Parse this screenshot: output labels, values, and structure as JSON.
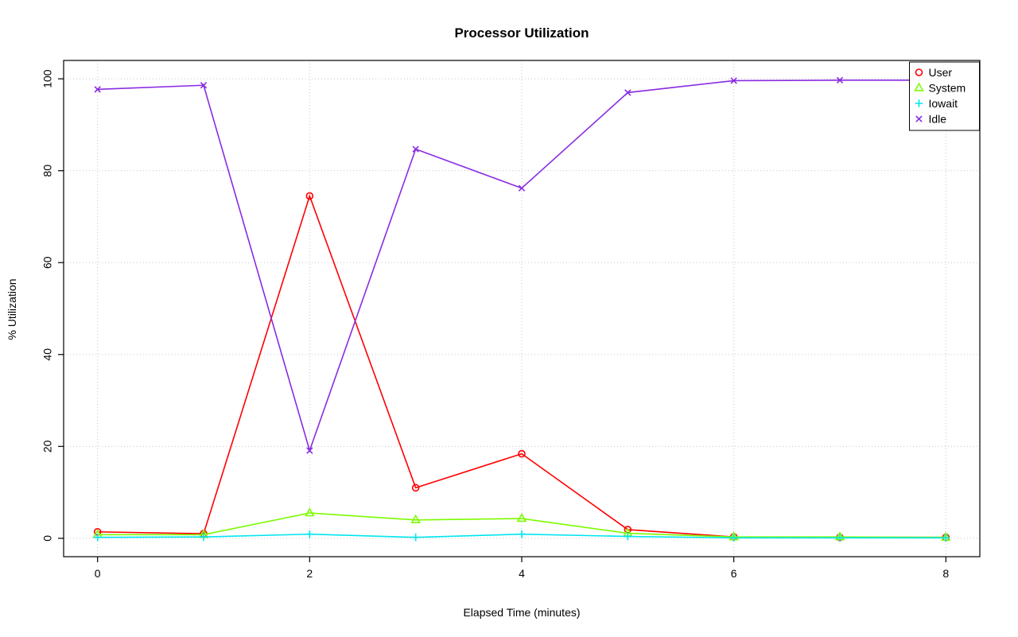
{
  "chart_data": {
    "type": "line",
    "title": "Processor Utilization",
    "xlabel": "Elapsed Time (minutes)",
    "ylabel": "% Utilization",
    "x": [
      0,
      1,
      2,
      3,
      4,
      5,
      6,
      7,
      8
    ],
    "xlim": [
      0,
      8
    ],
    "ylim": [
      0,
      100
    ],
    "xticks": [
      0,
      2,
      4,
      6,
      8
    ],
    "yticks": [
      0,
      20,
      40,
      60,
      80,
      100
    ],
    "grid": "dotted",
    "grid_color": "#c8c8c8",
    "axis_color": "#000000",
    "legend_position": "top-right",
    "series": [
      {
        "name": "User",
        "color": "#ff0000",
        "marker": "circle",
        "values": [
          1.4,
          1.0,
          74.5,
          11.0,
          18.4,
          1.9,
          0.3,
          0.2,
          0.2
        ]
      },
      {
        "name": "System",
        "color": "#7cfc00",
        "marker": "triangle",
        "values": [
          0.8,
          0.8,
          5.5,
          4.0,
          4.3,
          1.1,
          0.3,
          0.3,
          0.2
        ]
      },
      {
        "name": "Iowait",
        "color": "#00e5ee",
        "marker": "plus",
        "values": [
          0.2,
          0.3,
          0.9,
          0.2,
          0.9,
          0.4,
          0.1,
          0.1,
          0.1
        ]
      },
      {
        "name": "Idle",
        "color": "#8a2be2",
        "marker": "x",
        "values": [
          97.7,
          98.6,
          19.1,
          84.7,
          76.2,
          97.0,
          99.6,
          99.7,
          99.7
        ]
      }
    ]
  }
}
